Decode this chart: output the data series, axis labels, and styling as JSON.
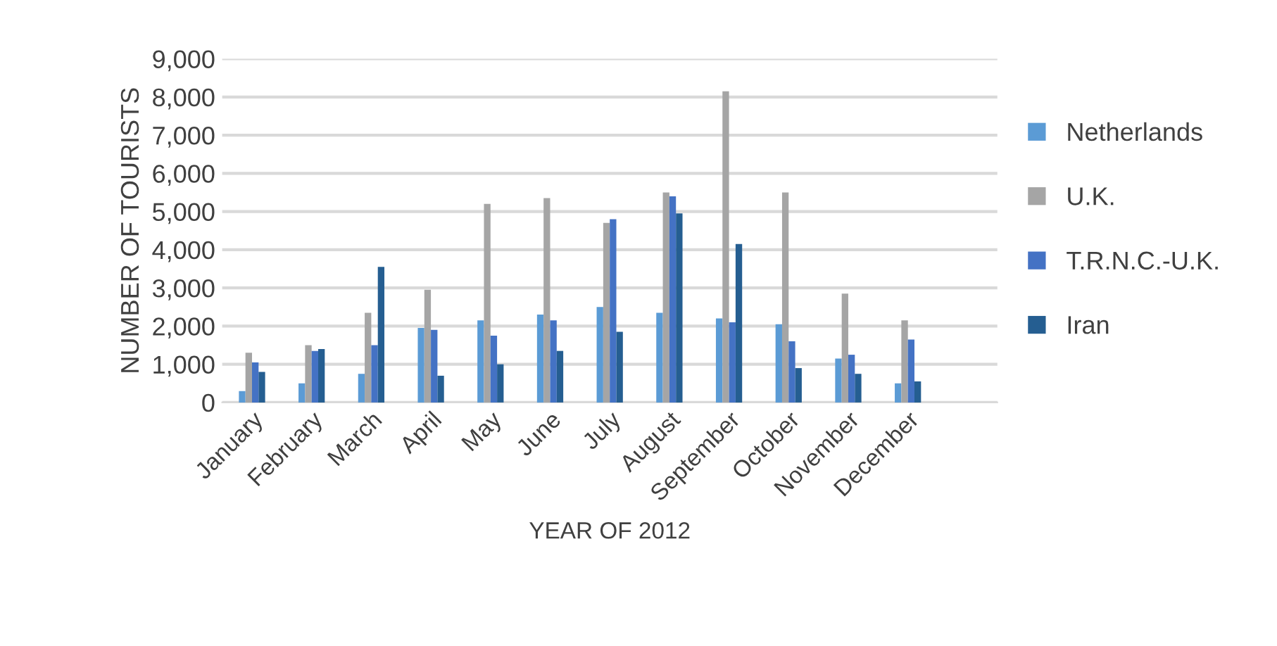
{
  "chart_data": {
    "type": "bar",
    "xlabel": "YEAR OF 2012",
    "ylabel": "NUMBER OF TOURISTS",
    "categories": [
      "January",
      "February",
      "March",
      "April",
      "May",
      "June",
      "July",
      "August",
      "September",
      "October",
      "November",
      "December",
      null
    ],
    "series": [
      {
        "name": "Netherlands",
        "color": "#5b9bd5",
        "values": [
          300,
          500,
          750,
          1950,
          2150,
          2300,
          2500,
          2350,
          2200,
          2050,
          1150,
          500,
          null
        ]
      },
      {
        "name": "U.K.",
        "color": "#a5a5a5",
        "values": [
          1300,
          1500,
          2350,
          2950,
          5200,
          5350,
          4700,
          5500,
          8150,
          5500,
          2850,
          2150,
          null
        ]
      },
      {
        "name": "T.R.N.C.-U.K.",
        "color": "#4472c4",
        "values": [
          1050,
          1350,
          1500,
          1900,
          1750,
          2150,
          4800,
          5400,
          2100,
          1600,
          1250,
          1650,
          null
        ]
      },
      {
        "name": "Iran",
        "color": "#255e91",
        "values": [
          800,
          1400,
          3550,
          700,
          1000,
          1350,
          1850,
          4950,
          4150,
          900,
          750,
          550,
          null
        ]
      }
    ],
    "ylim": [
      0,
      9000
    ],
    "yticks": [
      {
        "value": 0,
        "label": "0"
      },
      {
        "value": 1000,
        "label": "1,000"
      },
      {
        "value": 2000,
        "label": "2,000"
      },
      {
        "value": 3000,
        "label": "3,000"
      },
      {
        "value": 4000,
        "label": "4,000"
      },
      {
        "value": 5000,
        "label": "5,000"
      },
      {
        "value": 6000,
        "label": "6,000"
      },
      {
        "value": 7000,
        "label": "7,000"
      },
      {
        "value": 8000,
        "label": "8,000"
      },
      {
        "value": 9000,
        "label": "9,000"
      }
    ],
    "grid": "y",
    "legend": "right"
  }
}
